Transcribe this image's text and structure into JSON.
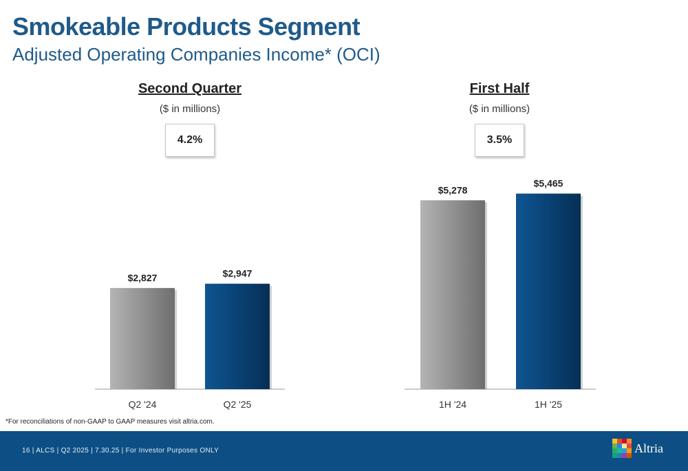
{
  "slide": {
    "title": "Smokeable Products Segment",
    "subtitle": "Adjusted Operating Companies Income* (OCI)",
    "footnote": "*For reconciliations of non-GAAP to GAAP measures visit altria.com.",
    "footer": "16 | ALCS | Q2 2025 | 7.30.25 | For Investor Purposes ONLY",
    "logo_text": "Altria"
  },
  "chart_data": [
    {
      "type": "bar",
      "title": "Second Quarter",
      "unit": "($ in millions)",
      "growth": "4.2%",
      "categories": [
        "Q2 '24",
        "Q2 '25"
      ],
      "values": [
        2827,
        2947
      ],
      "labels": [
        "$2,827",
        "$2,947"
      ],
      "colors": [
        "#8c8c8c",
        "#0d4f84"
      ]
    },
    {
      "type": "bar",
      "title": "First Half",
      "unit": "($ in millions)",
      "growth": "3.5%",
      "categories": [
        "1H '24",
        "1H '25"
      ],
      "values": [
        5278,
        5465
      ],
      "labels": [
        "$5,278",
        "$5,465"
      ],
      "colors": [
        "#8c8c8c",
        "#0d4f84"
      ]
    }
  ],
  "colors": {
    "brand_blue": "#1f5a8a",
    "footer_blue": "#0d4f84",
    "bar_gray": "#8c8c8c",
    "bar_blue": "#0d4f84"
  }
}
